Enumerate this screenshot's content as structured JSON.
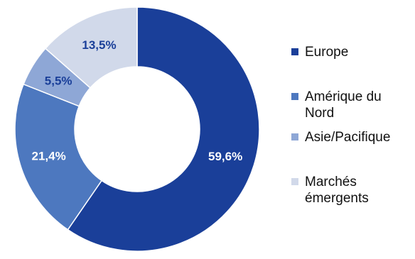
{
  "chart_data": {
    "type": "pie",
    "donut": true,
    "title": "",
    "legend_position": "right",
    "slices": [
      {
        "label": "Europe",
        "value": 59.6,
        "value_label": "59,6%",
        "color": "#1a3f99",
        "label_color": "#ffffff"
      },
      {
        "label": "Amérique du Nord",
        "value": 21.4,
        "value_label": "21,4%",
        "color": "#4d78bf",
        "label_color": "#ffffff"
      },
      {
        "label": "Asie/Pacifique",
        "value": 5.5,
        "value_label": "5,5%",
        "color": "#8ea7d6",
        "label_color": "#1a3f99"
      },
      {
        "label": "Marchés émergents",
        "value": 13.5,
        "value_label": "13,5%",
        "color": "#d1d9ea",
        "label_color": "#1a3f99"
      }
    ]
  }
}
